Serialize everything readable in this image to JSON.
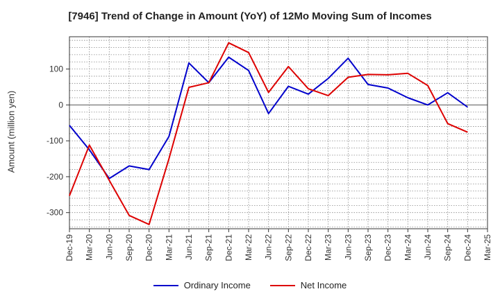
{
  "chart_data": {
    "type": "line",
    "title": "[7946]  Trend of Change in Amount (YoY) of 12Mo Moving Sum of Incomes",
    "ylabel": "Amount (million yen)",
    "xlabel": "",
    "ylim": [
      -345,
      190
    ],
    "yticks": [
      100,
      0,
      -100,
      -200,
      -300
    ],
    "grid": true,
    "legend_position": "bottom",
    "x": [
      "Dec-19",
      "Mar-20",
      "Jun-20",
      "Sep-20",
      "Dec-20",
      "Mar-21",
      "Jun-21",
      "Sep-21",
      "Dec-21",
      "Mar-22",
      "Jun-22",
      "Sep-22",
      "Dec-22",
      "Mar-23",
      "Jun-23",
      "Sep-23",
      "Dec-23",
      "Mar-24",
      "Jun-24",
      "Sep-24",
      "Dec-24",
      "Mar-25"
    ],
    "series": [
      {
        "name": "Ordinary Income",
        "color": "#0000cc",
        "values": [
          -57,
          -125,
          -205,
          -170,
          -180,
          -88,
          117,
          62,
          133,
          96,
          -24,
          52,
          30,
          74,
          130,
          57,
          47,
          20,
          0,
          34,
          -6,
          null
        ]
      },
      {
        "name": "Net Income",
        "color": "#dd0000",
        "values": [
          -253,
          -112,
          -210,
          -308,
          -333,
          -150,
          49,
          62,
          173,
          146,
          35,
          107,
          45,
          26,
          77,
          85,
          84,
          88,
          54,
          -52,
          -76,
          null
        ]
      }
    ]
  }
}
